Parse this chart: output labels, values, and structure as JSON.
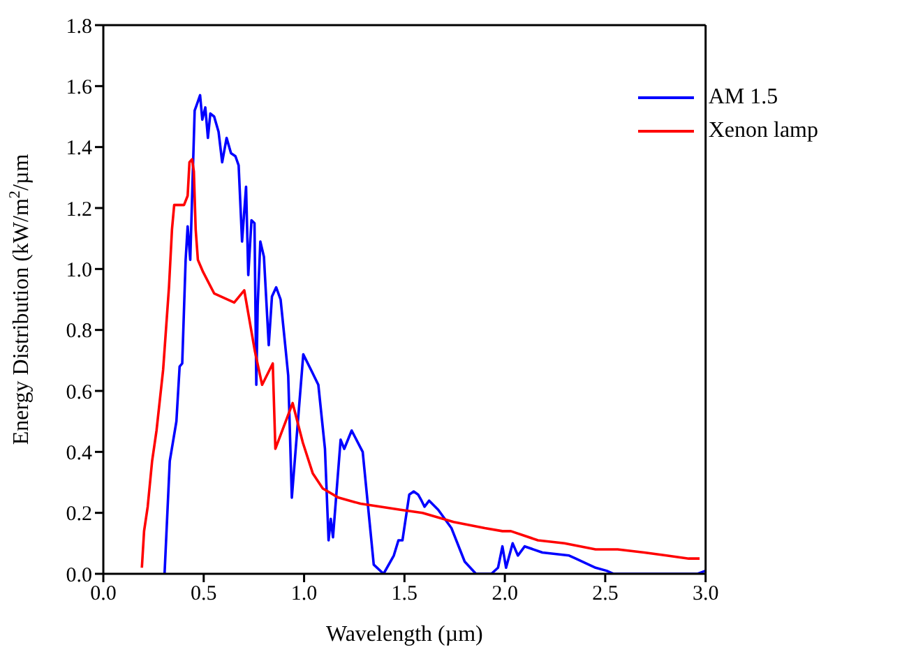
{
  "chart_data": {
    "type": "line",
    "xlabel": "Wavelength (µm)",
    "ylabel": "Energy Distribution (kW/m$^{2}$/µm",
    "xlim": [
      0,
      3
    ],
    "ylim": [
      0,
      1.8
    ],
    "xticks": [
      {
        "value": 0,
        "label": "0.0"
      },
      {
        "value": 0.5,
        "label": "0.5"
      },
      {
        "value": 1,
        "label": "1.0"
      },
      {
        "value": 1.5,
        "label": "1.5"
      },
      {
        "value": 2,
        "label": "2.0"
      },
      {
        "value": 2.5,
        "label": "2.5"
      },
      {
        "value": 3,
        "label": "3.0"
      }
    ],
    "yticks": [
      {
        "value": 0,
        "label": "0.0"
      },
      {
        "value": 0.2,
        "label": "0.2"
      },
      {
        "value": 0.4,
        "label": "0.4"
      },
      {
        "value": 0.6,
        "label": "0.6"
      },
      {
        "value": 0.8,
        "label": "0.8"
      },
      {
        "value": 1,
        "label": "1.0"
      },
      {
        "value": 1.2,
        "label": "1.2"
      },
      {
        "value": 1.4,
        "label": "1.4"
      },
      {
        "value": 1.6,
        "label": "1.6"
      },
      {
        "value": 1.8,
        "label": "1.8"
      }
    ],
    "grid": false,
    "legend": "top right",
    "marker": "none",
    "line_style": "solid",
    "series": [
      {
        "name": "AM 1.5",
        "color": "#0000ff",
        "x": [
          0.305,
          0.331,
          0.364,
          0.38,
          0.393,
          0.41,
          0.42,
          0.433,
          0.446,
          0.455,
          0.466,
          0.482,
          0.493,
          0.508,
          0.521,
          0.533,
          0.552,
          0.574,
          0.592,
          0.614,
          0.636,
          0.658,
          0.674,
          0.691,
          0.711,
          0.722,
          0.738,
          0.753,
          0.762,
          0.769,
          0.782,
          0.8,
          0.824,
          0.84,
          0.861,
          0.883,
          0.906,
          0.921,
          0.939,
          0.968,
          0.996,
          1.034,
          1.071,
          1.104,
          1.122,
          1.133,
          1.144,
          1.182,
          1.2,
          1.237,
          1.292,
          1.347,
          1.396,
          1.447,
          1.47,
          1.49,
          1.524,
          1.546,
          1.568,
          1.585,
          1.6,
          1.623,
          1.668,
          1.734,
          1.8,
          1.856,
          1.933,
          1.966,
          1.988,
          2.006,
          2.039,
          2.065,
          2.099,
          2.187,
          2.32,
          2.353,
          2.452,
          2.507,
          2.54,
          2.96,
          3.0
        ],
        "values": [
          0,
          0.37,
          0.5,
          0.68,
          0.69,
          1.03,
          1.14,
          1.03,
          1.32,
          1.52,
          1.54,
          1.57,
          1.49,
          1.53,
          1.43,
          1.51,
          1.5,
          1.45,
          1.35,
          1.43,
          1.38,
          1.37,
          1.34,
          1.09,
          1.27,
          0.98,
          1.16,
          1.15,
          0.62,
          0.88,
          1.09,
          1.04,
          0.75,
          0.91,
          0.94,
          0.9,
          0.75,
          0.65,
          0.25,
          0.49,
          0.72,
          0.67,
          0.62,
          0.41,
          0.11,
          0.18,
          0.12,
          0.44,
          0.41,
          0.47,
          0.4,
          0.03,
          0,
          0.06,
          0.11,
          0.11,
          0.26,
          0.27,
          0.26,
          0.24,
          0.22,
          0.24,
          0.21,
          0.15,
          0.04,
          0,
          0,
          0.02,
          0.09,
          0.02,
          0.1,
          0.06,
          0.09,
          0.07,
          0.06,
          0.05,
          0.02,
          0.01,
          0,
          0,
          0.01
        ]
      },
      {
        "name": "Xenon lamp",
        "color": "#ff0000",
        "x": [
          0.192,
          0.203,
          0.221,
          0.243,
          0.265,
          0.298,
          0.327,
          0.342,
          0.353,
          0.402,
          0.42,
          0.429,
          0.442,
          0.451,
          0.46,
          0.471,
          0.497,
          0.552,
          0.652,
          0.702,
          0.755,
          0.791,
          0.844,
          0.857,
          0.943,
          0.994,
          1.043,
          1.093,
          1.171,
          1.281,
          1.48,
          1.59,
          1.745,
          1.9,
          1.988,
          2.03,
          2.165,
          2.297,
          2.452,
          2.562,
          2.695,
          2.805,
          2.916,
          2.97
        ],
        "values": [
          0.02,
          0.14,
          0.22,
          0.37,
          0.47,
          0.67,
          0.94,
          1.13,
          1.21,
          1.21,
          1.24,
          1.35,
          1.36,
          1.32,
          1.13,
          1.03,
          0.99,
          0.92,
          0.89,
          0.93,
          0.73,
          0.62,
          0.69,
          0.41,
          0.56,
          0.43,
          0.33,
          0.28,
          0.25,
          0.23,
          0.21,
          0.2,
          0.17,
          0.15,
          0.14,
          0.14,
          0.11,
          0.1,
          0.08,
          0.08,
          0.07,
          0.06,
          0.05,
          0.05
        ]
      }
    ]
  }
}
